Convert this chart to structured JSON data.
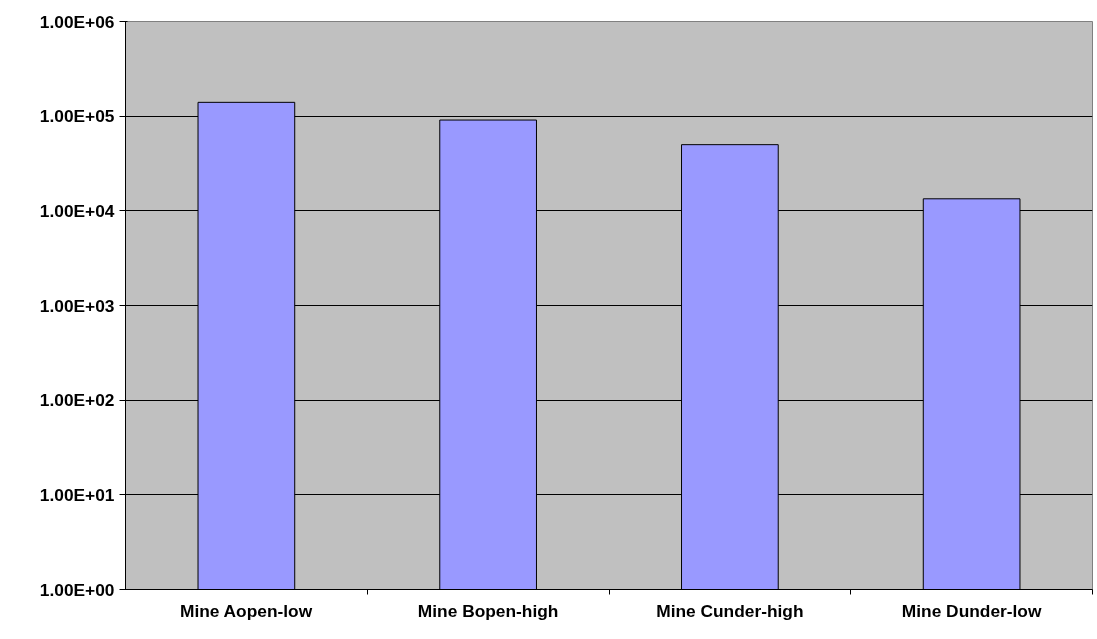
{
  "chart_data": {
    "type": "bar",
    "categories": [
      "Mine Aopen-low",
      "Mine Bopen-high",
      "Mine Cunder-high",
      "Mine Dunder-low"
    ],
    "values": [
      140000,
      91000,
      50000,
      13400
    ],
    "color": "#9999ff",
    "log": "y",
    "ylim": [
      1,
      1000000
    ],
    "yticks": [
      {
        "value": 1,
        "label": "1.00E+00"
      },
      {
        "value": 10,
        "label": "1.00E+01"
      },
      {
        "value": 100,
        "label": "1.00E+02"
      },
      {
        "value": 1000,
        "label": "1.00E+03"
      },
      {
        "value": 10000,
        "label": "1.00E+04"
      },
      {
        "value": 100000,
        "label": "1.00E+05"
      },
      {
        "value": 1000000,
        "label": "1.00E+06"
      }
    ],
    "grid": "y"
  }
}
